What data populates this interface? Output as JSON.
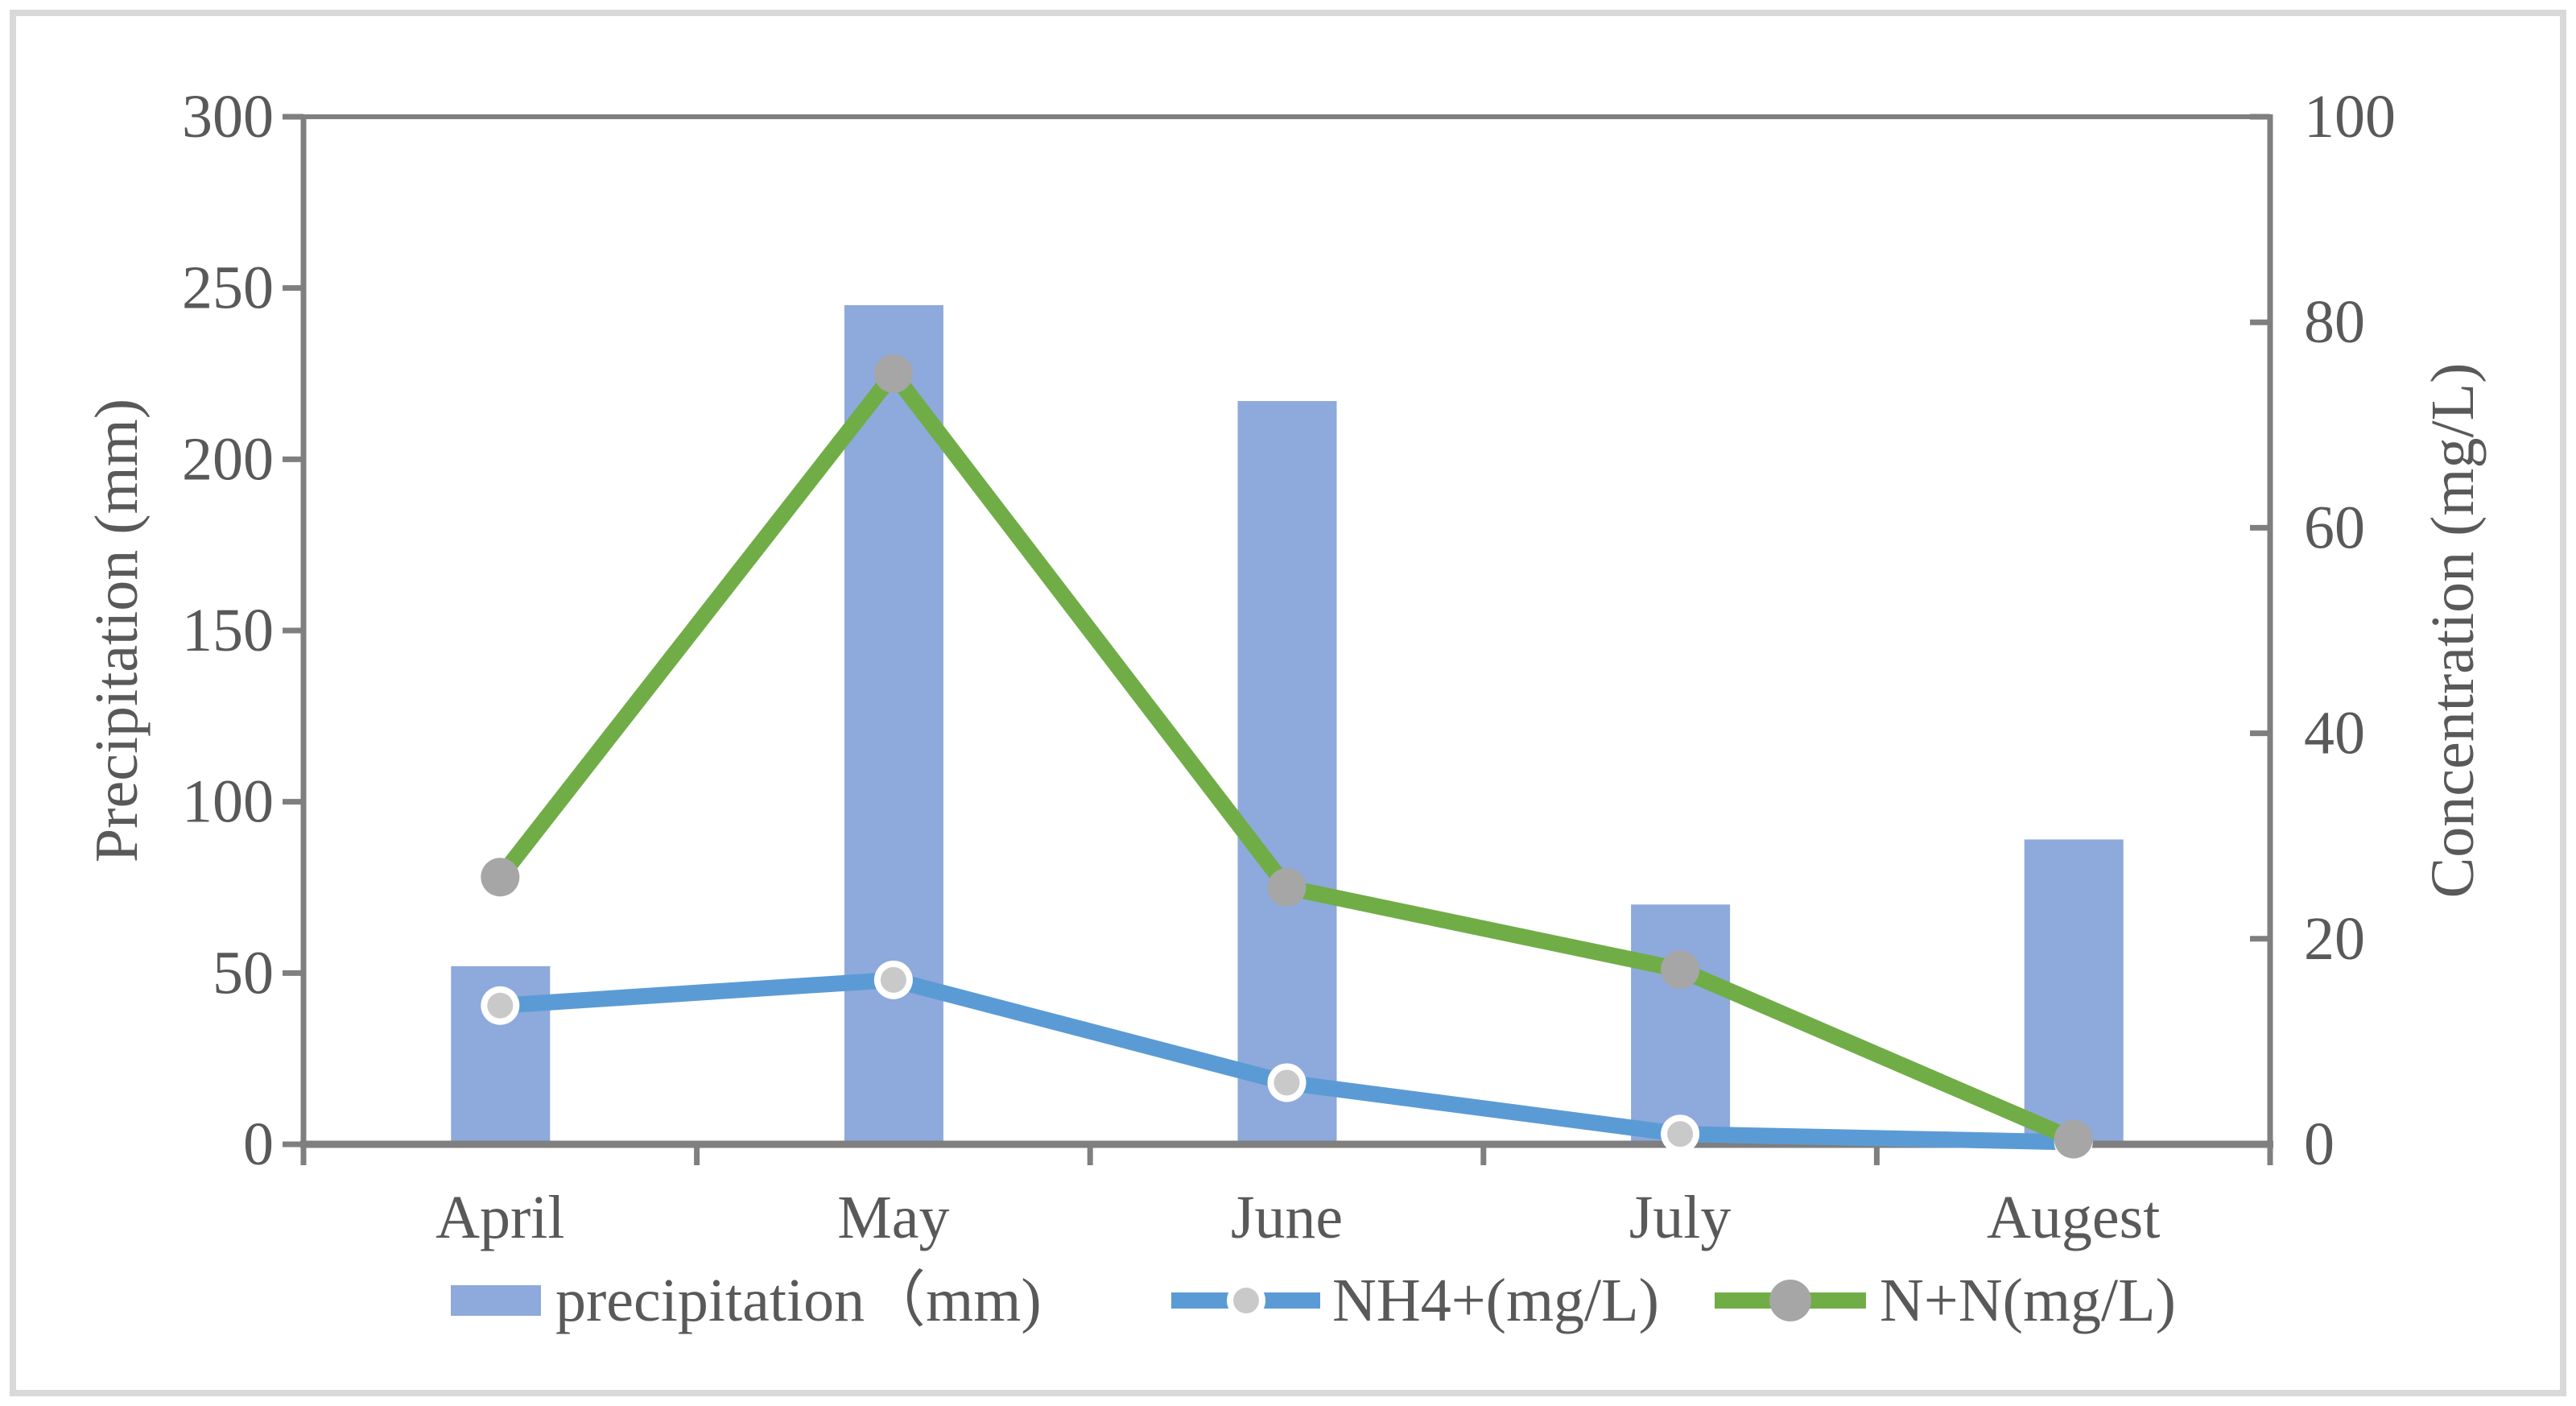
{
  "chart_data": {
    "type": "combo-bar-line",
    "categories": [
      "April",
      "May",
      "June",
      "July",
      "Augest"
    ],
    "series": [
      {
        "name": "precipitation（mm)",
        "type": "bar",
        "axis": "left",
        "color": "#8EA9DB",
        "values": [
          52,
          245,
          217,
          70,
          89
        ]
      },
      {
        "name": "NH4+(mg/L)",
        "type": "line",
        "axis": "right",
        "color": "#5B9BD5",
        "marker": {
          "fill": "#C9C9C9",
          "ring": "#FFFFFF"
        },
        "values": [
          13.5,
          16,
          6,
          1,
          0.2
        ]
      },
      {
        "name": "N+N(mg/L)",
        "type": "line",
        "axis": "right",
        "color": "#70AD47",
        "marker": {
          "fill": "#A6A6A6"
        },
        "values": [
          26,
          75,
          25,
          17,
          0.5
        ]
      }
    ],
    "left_axis": {
      "label": "Precipitation (mm)",
      "min": 0,
      "max": 300,
      "step": 50,
      "ticks": [
        "0",
        "50",
        "100",
        "150",
        "200",
        "250",
        "300"
      ]
    },
    "right_axis": {
      "label": "Concentration (mg/L)",
      "min": 0,
      "max": 100,
      "step": 20,
      "ticks": [
        "0",
        "20",
        "40",
        "60",
        "80",
        "100"
      ]
    },
    "legend": {
      "position": "bottom"
    },
    "grid": false,
    "styles": {
      "axis_color": "#7F7F7F",
      "text_color": "#595959",
      "frame_color": "#D9D9D9",
      "background": "#FFFFFF"
    }
  }
}
